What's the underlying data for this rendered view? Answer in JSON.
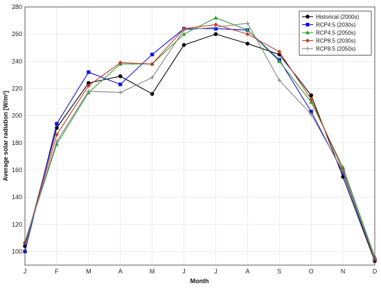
{
  "chart_data": {
    "type": "line",
    "categories": [
      "J",
      "F",
      "M",
      "A",
      "M",
      "J",
      "J",
      "A",
      "S",
      "O",
      "N",
      "D"
    ],
    "xlabel": "Month",
    "ylabel": "Average solar radiation [W/m²]",
    "ylim": [
      90,
      280
    ],
    "yticks": [
      100,
      120,
      140,
      160,
      180,
      200,
      220,
      240,
      260,
      280
    ],
    "grid": true,
    "legend_position": "top-right",
    "series": [
      {
        "name": "Historical (2000s)",
        "color": "#000000",
        "marker": "circle",
        "values": [
          104,
          191,
          224,
          229,
          216,
          252,
          260,
          253,
          245,
          215,
          155,
          93
        ]
      },
      {
        "name": "RCP4.5 (2030s)",
        "color": "#1010e0",
        "marker": "square",
        "values": [
          100,
          194,
          232,
          223,
          245,
          264,
          264,
          263,
          241,
          203,
          158,
          94
        ]
      },
      {
        "name": "RCP4.5 (2050s)",
        "color": "#2ca02c",
        "marker": "triangle",
        "values": [
          107,
          179,
          217,
          238,
          238,
          260,
          272,
          263,
          240,
          210,
          162,
          96
        ]
      },
      {
        "name": "RCP8.5 (2030s)",
        "color": "#c0392b",
        "marker": "diamond",
        "values": [
          106,
          186,
          222,
          239,
          238,
          264,
          267,
          260,
          247,
          212,
          160,
          94
        ]
      },
      {
        "name": "RCP8.5 (2050s)",
        "color": "#808080",
        "marker": "plus",
        "values": [
          107,
          181,
          218,
          217,
          228,
          263,
          265,
          268,
          226,
          201,
          159,
          95
        ]
      }
    ]
  }
}
